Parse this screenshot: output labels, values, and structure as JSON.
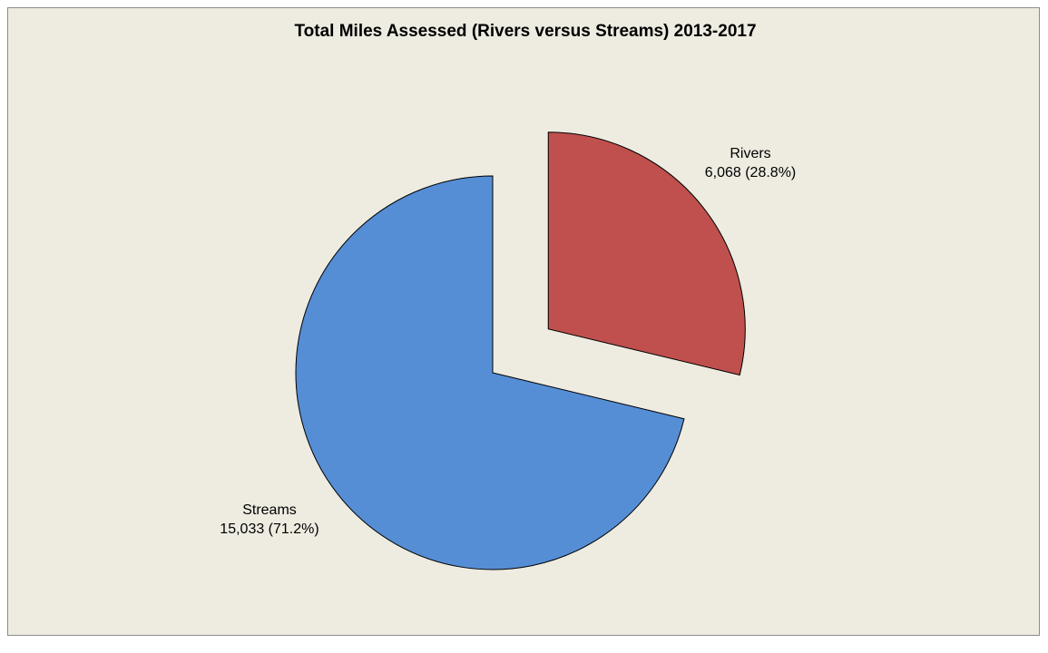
{
  "chart_data": {
    "type": "pie",
    "title": "Total Miles Assessed (Rivers versus Streams) 2013-2017",
    "slices": [
      {
        "name": "Rivers",
        "value": 6068,
        "value_label": "6,068 (28.8%)",
        "percent": 28.8,
        "color": "#c0504d",
        "exploded": true
      },
      {
        "name": "Streams",
        "value": 15033,
        "value_label": "15,033 (71.2%)",
        "percent": 71.2,
        "color": "#558ed5",
        "exploded": false
      }
    ],
    "start_angle": "12 o'clock",
    "direction": "clockwise",
    "legend": "none"
  }
}
